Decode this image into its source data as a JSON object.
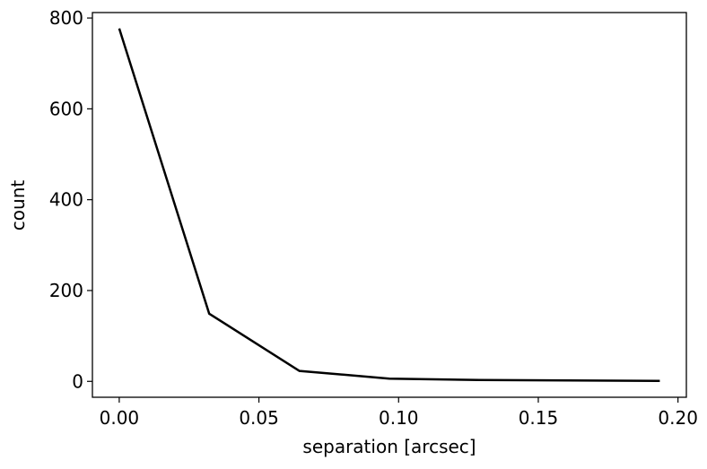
{
  "chart_data": {
    "type": "line",
    "x_label": "separation [arcsec]",
    "y_label": "count",
    "x": [
      0,
      0.0322,
      0.0645,
      0.0967,
      0.129,
      0.1612,
      0.1935
    ],
    "series": [
      {
        "name": "count",
        "color": "#000000",
        "values": [
          777,
          149,
          23,
          6,
          3,
          2,
          1
        ]
      }
    ],
    "xlim": [
      -0.0096,
      0.203
    ],
    "ylim": [
      -35,
      812
    ],
    "xticks": [
      {
        "value": 0,
        "label": "0.00"
      },
      0.05,
      {
        "value": 0.1,
        "label": "0.10"
      },
      0.15,
      {
        "value": 0.2,
        "label": "0.20"
      }
    ],
    "yticks": [
      0,
      200,
      400,
      600,
      800
    ]
  }
}
